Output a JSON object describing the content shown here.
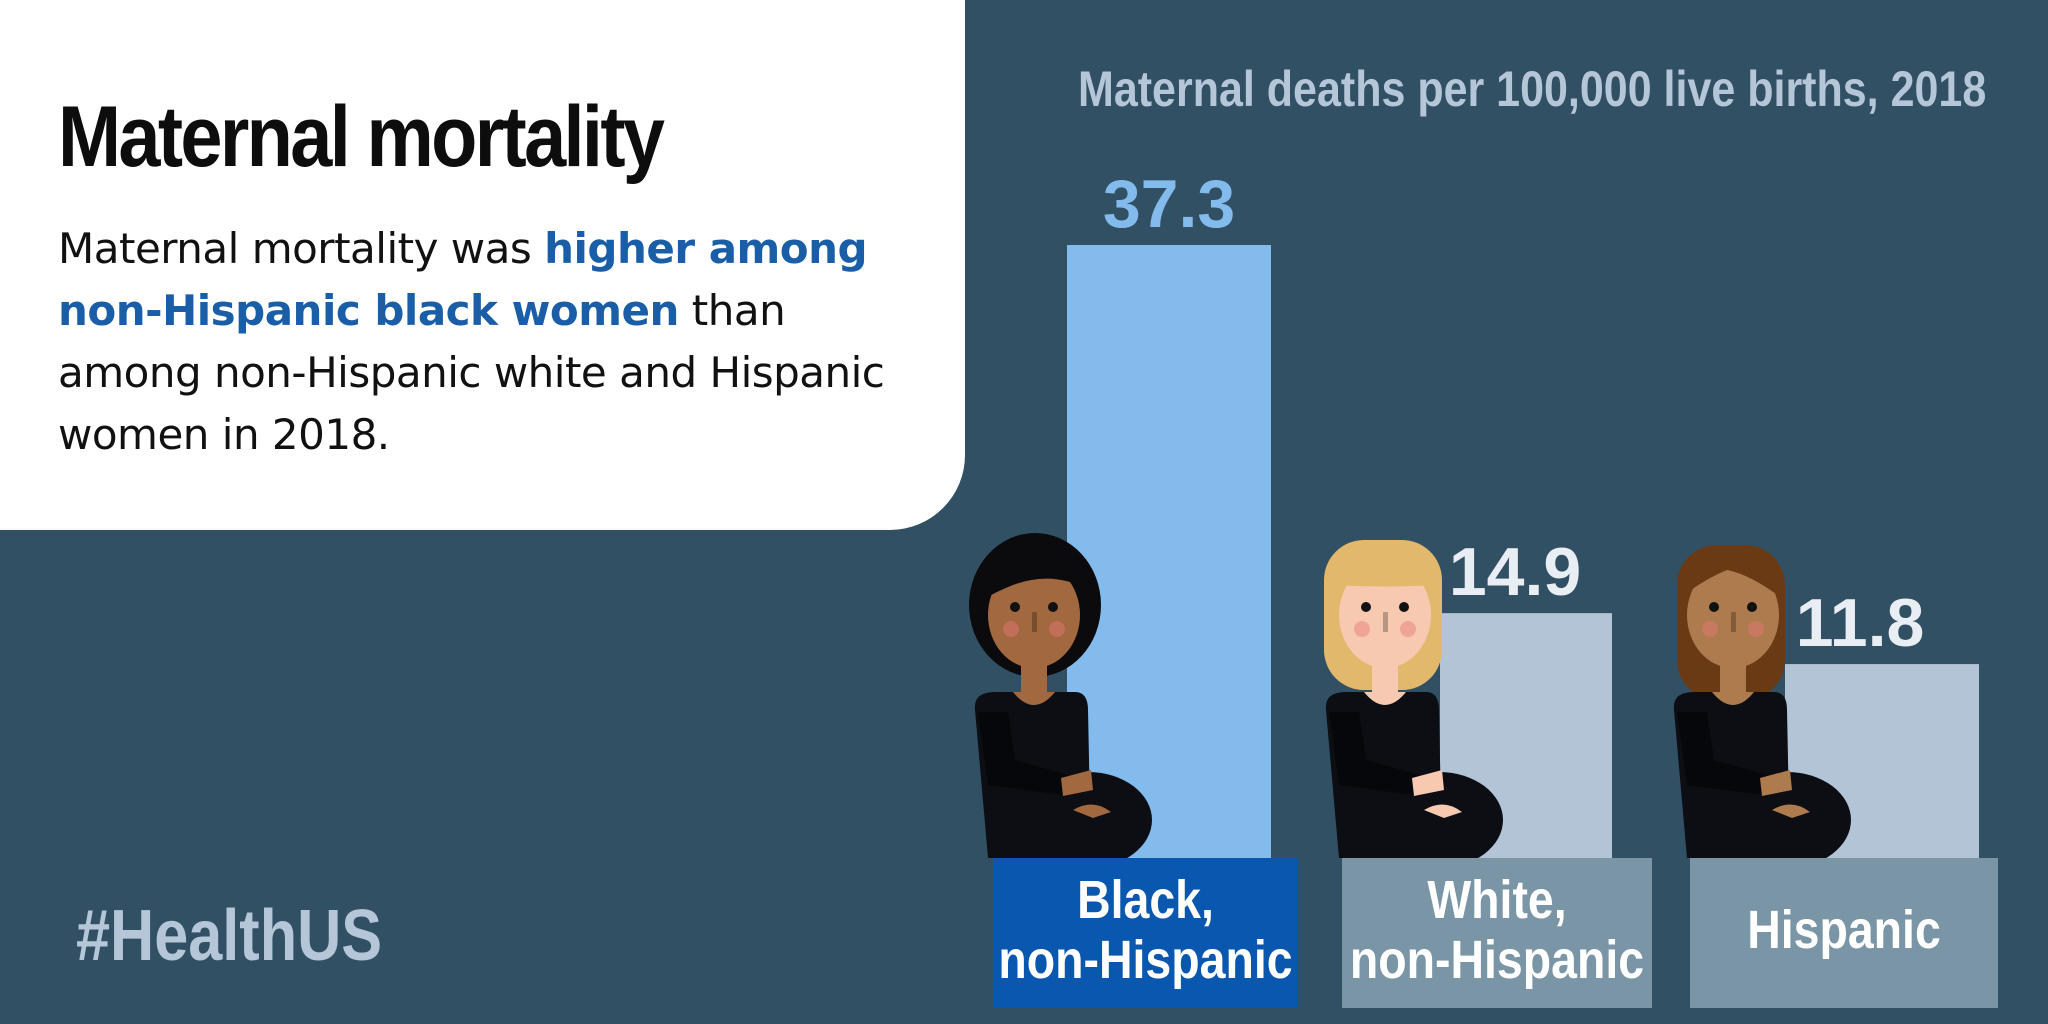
{
  "headline": "Maternal mortality",
  "summary": {
    "part1": "Maternal mortality was ",
    "highlight": "higher among non-Hispanic black women",
    "part2": " than among non-Hispanic white and Hispanic women in 2018."
  },
  "hashtag": "#HealthUS",
  "colors": {
    "background": "#325064",
    "card": "#ffffff",
    "highlight_text": "#1a5ea8",
    "bar_primary": "#84bbed",
    "bar_secondary": "#b3c4d6",
    "label_primary": "#0a57b0",
    "label_secondary": "#7a95a5"
  },
  "chart_data": {
    "type": "bar",
    "title": "Maternal deaths per 100,000 live births, 2018",
    "categories": [
      "Black, non-Hispanic",
      "White, non-Hispanic",
      "Hispanic"
    ],
    "category_lines": [
      [
        "Black,",
        "non-Hispanic"
      ],
      [
        "White,",
        "non-Hispanic"
      ],
      [
        "Hispanic"
      ]
    ],
    "values": [
      37.3,
      14.9,
      11.8
    ],
    "value_labels": [
      "37.3",
      "14.9",
      "11.8"
    ],
    "xlabel": "",
    "ylabel": "",
    "grid": false,
    "legend": "none"
  },
  "figures": [
    {
      "name": "black-woman-figure",
      "skin": "#a2683f",
      "hair": "#0b0b0d",
      "style": "bob"
    },
    {
      "name": "white-woman-figure",
      "skin": "#f6c9b0",
      "hair": "#e2b86c",
      "style": "blonde-bob"
    },
    {
      "name": "hispanic-woman-figure",
      "skin": "#ae7b4f",
      "hair": "#6a3a14",
      "style": "long"
    }
  ]
}
